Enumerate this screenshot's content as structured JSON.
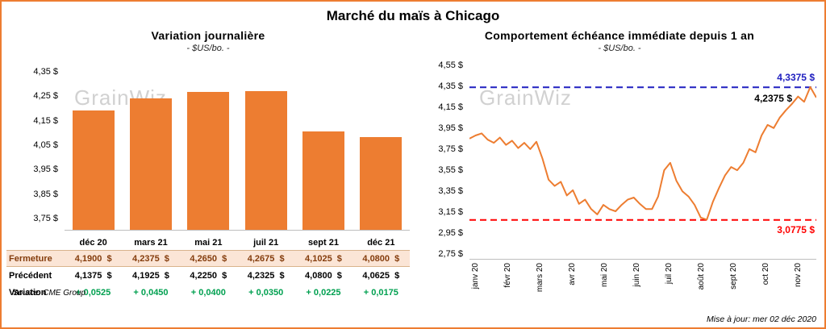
{
  "title": "Marché du maïs à Chicago",
  "colors": {
    "accent_orange": "#ED7D31",
    "page_border": "#ED7D31",
    "blue_ref": "#2020C0",
    "red_ref": "#FF0000",
    "variation_green": "#00A050",
    "fermeture_text": "#843C0C",
    "fermeture_bg": "#FBE5D6",
    "watermark_gray": "#C9C9C9"
  },
  "left_panel": {
    "title": "Variation journalière",
    "subtitle": "- $US/bo. -",
    "watermark": "GrainWiz",
    "source": "Source: CME Group"
  },
  "right_panel": {
    "title": "Comportement échéance immédiate depuis 1 an",
    "subtitle": "- $US/bo. -",
    "watermark": "GrainWiz",
    "updated": "Mise à jour: mer 02 déc 2020"
  },
  "chart_data": [
    {
      "type": "bar",
      "title": "Variation journalière",
      "ylabel": "$US/bo.",
      "bar_color": "#ED7D31",
      "grid": false,
      "ylim": [
        3.7,
        4.4
      ],
      "categories": [
        "déc 20",
        "mars 21",
        "mai 21",
        "juil 21",
        "sept 21",
        "déc 21"
      ],
      "values": [
        4.19,
        4.2375,
        4.265,
        4.2675,
        4.1025,
        4.08
      ],
      "y_ticks": [
        {
          "v": 4.35,
          "label": "4,35 $"
        },
        {
          "v": 4.25,
          "label": "4,25 $"
        },
        {
          "v": 4.15,
          "label": "4,15 $"
        },
        {
          "v": 4.05,
          "label": "4,05 $"
        },
        {
          "v": 3.95,
          "label": "3,95 $"
        },
        {
          "v": 3.85,
          "label": "3,85 $"
        },
        {
          "v": 3.75,
          "label": "3,75 $"
        }
      ],
      "table": {
        "rows": [
          {
            "label": "Fermeture",
            "style": "fermeture",
            "suffix": "$",
            "values": [
              "4,1900",
              "4,2375",
              "4,2650",
              "4,2675",
              "4,1025",
              "4,0800"
            ]
          },
          {
            "label": "Précédent",
            "style": "precedent",
            "suffix": "$",
            "values": [
              "4,1375",
              "4,1925",
              "4,2250",
              "4,2325",
              "4,0800",
              "4,0625"
            ]
          },
          {
            "label": "Variation",
            "style": "variation",
            "suffix": "",
            "values": [
              "+ 0,0525",
              "+ 0,0450",
              "+ 0,0400",
              "+ 0,0350",
              "+ 0,0225",
              "+ 0,0175"
            ]
          }
        ]
      }
    },
    {
      "type": "line",
      "title": "Comportement échéance immédiate depuis 1 an",
      "ylabel": "$US/bo.",
      "line_color": "#ED7D31",
      "grid": false,
      "ylim": [
        2.7,
        4.6
      ],
      "x_tick_labels": [
        "janv 20",
        "févr 20",
        "mars 20",
        "avr 20",
        "mai 20",
        "juin 20",
        "juil 20",
        "août 20",
        "sept 20",
        "oct 20",
        "nov 20"
      ],
      "y_ticks": [
        {
          "v": 4.55,
          "label": "4,55 $"
        },
        {
          "v": 4.35,
          "label": "4,35 $"
        },
        {
          "v": 4.15,
          "label": "4,15 $"
        },
        {
          "v": 3.95,
          "label": "3,95 $"
        },
        {
          "v": 3.75,
          "label": "3,75 $"
        },
        {
          "v": 3.55,
          "label": "3,55 $"
        },
        {
          "v": 3.35,
          "label": "3,35 $"
        },
        {
          "v": 3.15,
          "label": "3,15 $"
        },
        {
          "v": 2.95,
          "label": "2,95 $"
        },
        {
          "v": 2.75,
          "label": "2,75 $"
        }
      ],
      "values": [
        3.85,
        3.88,
        3.9,
        3.84,
        3.81,
        3.86,
        3.79,
        3.83,
        3.76,
        3.81,
        3.75,
        3.82,
        3.66,
        3.46,
        3.4,
        3.44,
        3.31,
        3.36,
        3.23,
        3.27,
        3.18,
        3.13,
        3.22,
        3.18,
        3.16,
        3.22,
        3.27,
        3.29,
        3.23,
        3.18,
        3.18,
        3.3,
        3.55,
        3.62,
        3.45,
        3.35,
        3.3,
        3.22,
        3.1,
        3.08,
        3.25,
        3.38,
        3.5,
        3.58,
        3.55,
        3.62,
        3.75,
        3.72,
        3.88,
        3.98,
        3.95,
        4.05,
        4.12,
        4.18,
        4.25,
        4.2,
        4.34,
        4.24
      ],
      "ref_lines": [
        {
          "value": 4.3375,
          "label": "4,3375 $",
          "color": "#2020C0",
          "style": "dashed",
          "label_side": "above"
        },
        {
          "value": 3.0775,
          "label": "3,0775 $",
          "color": "#FF0000",
          "style": "dashed",
          "label_side": "below"
        }
      ],
      "annotations": [
        {
          "label": "4,2375 $",
          "value": 4.2375
        }
      ]
    }
  ]
}
